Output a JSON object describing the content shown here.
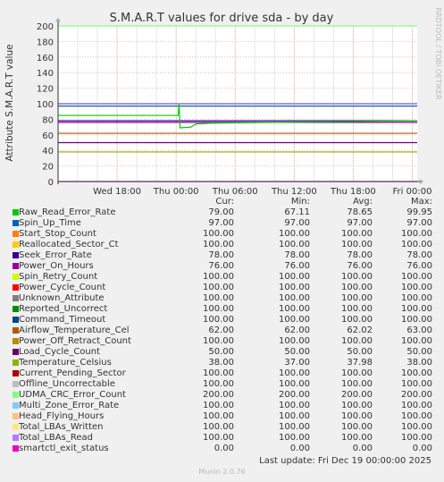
{
  "chart_data": {
    "type": "line",
    "title": "S.M.A.R.T values for drive sda - by day",
    "ylabel": "Attribute S.M.A.R.T value",
    "side_label": "RRDTOOL / TOBI OETIKER",
    "ylim": [
      0,
      200
    ],
    "yticks": [
      0,
      20,
      40,
      60,
      80,
      100,
      120,
      140,
      160,
      180,
      200
    ],
    "xtick_labels": [
      "Wed 18:00",
      "Thu 00:00",
      "Thu 06:00",
      "Thu 12:00",
      "Thu 18:00",
      "Fri 00:00"
    ],
    "xtick_hours": [
      6,
      12,
      18,
      24,
      30,
      36
    ],
    "x_range_hours": [
      0,
      36.5
    ],
    "grid": true,
    "columns": [
      "Cur:",
      "Min:",
      "Avg:",
      "Max:"
    ],
    "series": [
      {
        "name": "Raw_Read_Error_Rate",
        "color": "#00cc00",
        "cur": "79.00",
        "min": "67.11",
        "avg": "78.65",
        "max": "99.95"
      },
      {
        "name": "Spin_Up_Time",
        "color": "#0066b3",
        "cur": "97.00",
        "min": "97.00",
        "avg": "97.00",
        "max": "97.00"
      },
      {
        "name": "Start_Stop_Count",
        "color": "#ff8000",
        "cur": "100.00",
        "min": "100.00",
        "avg": "100.00",
        "max": "100.00"
      },
      {
        "name": "Reallocated_Sector_Ct",
        "color": "#ffcc00",
        "cur": "100.00",
        "min": "100.00",
        "avg": "100.00",
        "max": "100.00"
      },
      {
        "name": "Seek_Error_Rate",
        "color": "#330099",
        "cur": "78.00",
        "min": "78.00",
        "avg": "78.00",
        "max": "78.00"
      },
      {
        "name": "Power_On_Hours",
        "color": "#990099",
        "cur": "76.00",
        "min": "76.00",
        "avg": "76.00",
        "max": "76.00"
      },
      {
        "name": "Spin_Retry_Count",
        "color": "#ccff00",
        "cur": "100.00",
        "min": "100.00",
        "avg": "100.00",
        "max": "100.00"
      },
      {
        "name": "Power_Cycle_Count",
        "color": "#ff0000",
        "cur": "100.00",
        "min": "100.00",
        "avg": "100.00",
        "max": "100.00"
      },
      {
        "name": "Unknown_Attribute",
        "color": "#808080",
        "cur": "100.00",
        "min": "100.00",
        "avg": "100.00",
        "max": "100.00"
      },
      {
        "name": "Reported_Uncorrect",
        "color": "#008f00",
        "cur": "100.00",
        "min": "100.00",
        "avg": "100.00",
        "max": "100.00"
      },
      {
        "name": "Command_Timeout",
        "color": "#00487d",
        "cur": "100.00",
        "min": "100.00",
        "avg": "100.00",
        "max": "100.00"
      },
      {
        "name": "Airflow_Temperature_Cel",
        "color": "#b35a00",
        "cur": "62.00",
        "min": "62.00",
        "avg": "62.02",
        "max": "63.00"
      },
      {
        "name": "Power_Off_Retract_Count",
        "color": "#b38f00",
        "cur": "100.00",
        "min": "100.00",
        "avg": "100.00",
        "max": "100.00"
      },
      {
        "name": "Load_Cycle_Count",
        "color": "#6b006b",
        "cur": "50.00",
        "min": "50.00",
        "avg": "50.00",
        "max": "50.00"
      },
      {
        "name": "Temperature_Celsius",
        "color": "#8fb300",
        "cur": "38.00",
        "min": "37.00",
        "avg": "37.98",
        "max": "38.00"
      },
      {
        "name": "Current_Pending_Sector",
        "color": "#b30000",
        "cur": "100.00",
        "min": "100.00",
        "avg": "100.00",
        "max": "100.00"
      },
      {
        "name": "Offline_Uncorrectable",
        "color": "#bebebe",
        "cur": "100.00",
        "min": "100.00",
        "avg": "100.00",
        "max": "100.00"
      },
      {
        "name": "UDMA_CRC_Error_Count",
        "color": "#80ff80",
        "cur": "200.00",
        "min": "200.00",
        "avg": "200.00",
        "max": "200.00"
      },
      {
        "name": "Multi_Zone_Error_Rate",
        "color": "#80c9ff",
        "cur": "100.00",
        "min": "100.00",
        "avg": "100.00",
        "max": "100.00"
      },
      {
        "name": "Head_Flying_Hours",
        "color": "#ffc080",
        "cur": "100.00",
        "min": "100.00",
        "avg": "100.00",
        "max": "100.00"
      },
      {
        "name": "Total_LBAs_Written",
        "color": "#ffe680",
        "cur": "100.00",
        "min": "100.00",
        "avg": "100.00",
        "max": "100.00"
      },
      {
        "name": "Total_LBAs_Read",
        "color": "#aa80ff",
        "cur": "100.00",
        "min": "100.00",
        "avg": "100.00",
        "max": "100.00"
      },
      {
        "name": "smartctl_exit_status",
        "color": "#ee00cc",
        "cur": "0.00",
        "min": "0.00",
        "avg": "0.00",
        "max": "0.00"
      }
    ],
    "raw_read_error_rate_points": [
      [
        0,
        85
      ],
      [
        12.2,
        85
      ],
      [
        12.3,
        100
      ],
      [
        12.4,
        69
      ],
      [
        13.5,
        70
      ],
      [
        14,
        74
      ],
      [
        15.5,
        75
      ],
      [
        36.5,
        78
      ]
    ]
  },
  "footer": {
    "last_update": "Last update: Fri Dec 19 00:00:00 2025",
    "generator": "Munin 2.0.76"
  }
}
